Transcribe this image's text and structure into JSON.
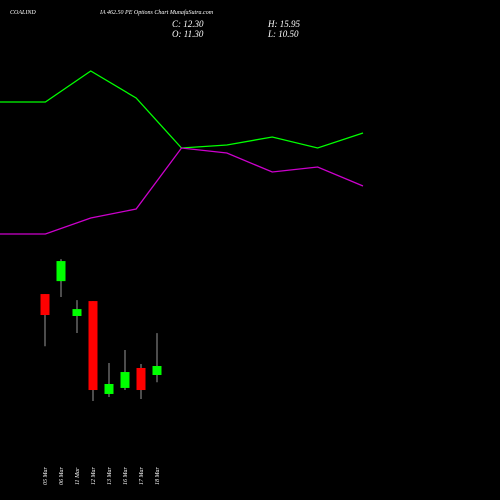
{
  "header": {
    "title": "COALIND",
    "subtitle": "IA 462.50 PE Options Chart MunafaSutra.com",
    "ohlc": [
      "C: 12.30",
      "H: 15.95",
      "O: 11.30",
      "L: 10.50"
    ]
  },
  "chart_data": [
    {
      "type": "line",
      "categories": [
        null,
        null,
        null,
        null,
        null,
        null,
        null,
        null,
        null
      ],
      "ylim": [
        0,
        500
      ],
      "series": [
        {
          "color": "#00ff00",
          "values": [
            398,
            398,
            429,
            402,
            352,
            355,
            363,
            352,
            367
          ]
        },
        {
          "color": "#cc00cc",
          "values": [
            266,
            266,
            282,
            291,
            352,
            347,
            328,
            333,
            314
          ]
        }
      ]
    },
    {
      "type": "candlestick",
      "categories": [
        "05 Mar",
        "06 Mar",
        "11 Mar",
        "12 Mar",
        "13 Mar",
        "16 Mar",
        "17 Mar",
        "18 Mar"
      ],
      "ylim": [
        -2.6,
        53
      ],
      "up_color": "#00ff00",
      "down_color": "#ff0000",
      "open": [
        20.3,
        21.74,
        17.86,
        19.52,
        9.19,
        9.86,
        12.08,
        11.3
      ],
      "high": [
        20.3,
        24.19,
        19.63,
        19.52,
        12.63,
        14.08,
        12.52,
        15.95
      ],
      "low": [
        14.5,
        19.97,
        15.97,
        8.41,
        8.86,
        9.63,
        8.63,
        10.5
      ],
      "close": [
        17.97,
        23.97,
        18.63,
        9.63,
        10.3,
        11.63,
        9.63,
        12.3
      ]
    }
  ]
}
